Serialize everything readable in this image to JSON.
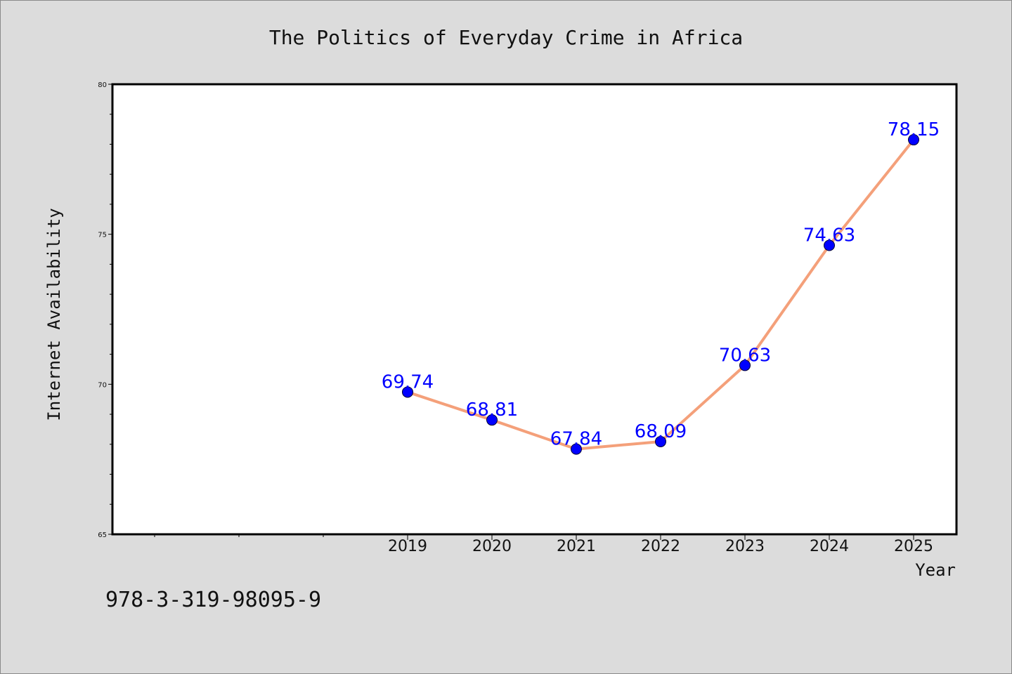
{
  "chart_data": {
    "type": "line",
    "title": "The Politics of Everyday Crime in Africa",
    "xlabel": "Year",
    "ylabel": "Internet Availability",
    "x": [
      "2019",
      "2020",
      "2021",
      "2022",
      "2023",
      "2024",
      "2025"
    ],
    "series": [
      {
        "values": [
          69.74,
          68.81,
          67.84,
          68.09,
          70.63,
          74.63,
          78.15
        ],
        "data_labels": [
          "69.74",
          "68.81",
          "67.84",
          "68.09",
          "70.63",
          "74.63",
          "78.15"
        ]
      }
    ],
    "ylim": [
      65,
      80
    ],
    "y_ticks": [
      "65",
      "70",
      "75",
      "80"
    ],
    "grid": false,
    "legend": "none",
    "colors": {
      "line": "#f4a07a",
      "marker": "#0000ff",
      "data_label": "#0000ff",
      "plot_background": "#ffffff",
      "figure_background": "#dcdcdc"
    }
  },
  "footer": {
    "isbn": "978-3-319-98095-9"
  }
}
